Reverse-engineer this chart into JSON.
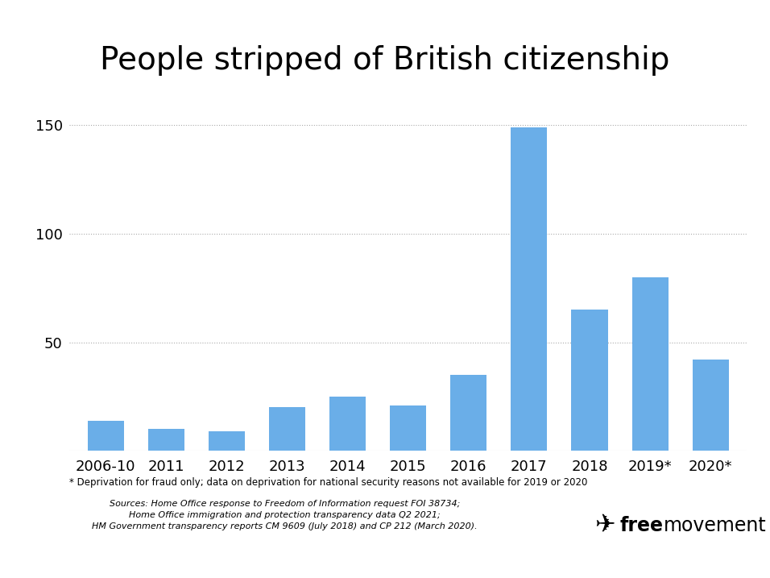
{
  "categories": [
    "2006-10",
    "2011",
    "2012",
    "2013",
    "2014",
    "2015",
    "2016",
    "2017",
    "2018",
    "2019*",
    "2020*"
  ],
  "values": [
    14,
    10,
    9,
    20,
    25,
    21,
    35,
    149,
    65,
    80,
    42
  ],
  "bar_color": "#6aaee8",
  "title": "People stripped of British citizenship",
  "title_fontsize": 28,
  "yticks": [
    50,
    100,
    150
  ],
  "ylim": [
    0,
    165
  ],
  "background_color": "#ffffff",
  "grid_color": "#aaaaaa",
  "footnote1": "* Deprivation for fraud only; data on deprivation for national security reasons not available for 2019 or 2020",
  "sources_line1": "Sources: Home Office response to Freedom of Information request FOI 38734;",
  "sources_line2": "Home Office immigration and protection transparency data Q2 2021;",
  "sources_line3": "HM Government transparency reports CM 9609 (July 2018) and CP 212 (March 2020)."
}
